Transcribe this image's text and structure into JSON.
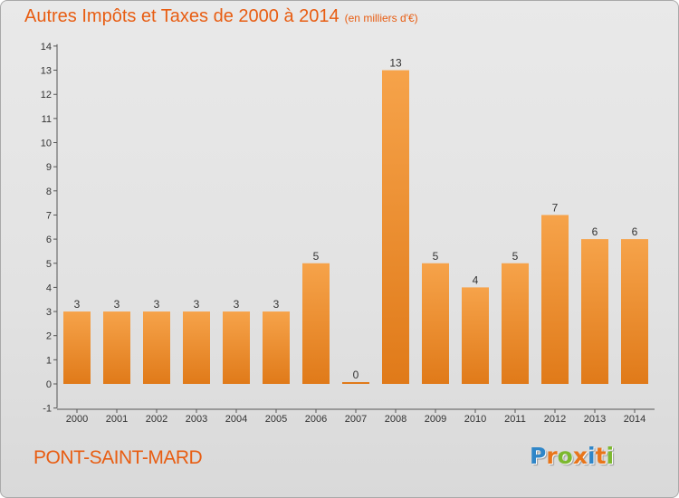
{
  "chart_data": {
    "type": "bar",
    "title": "Autres Impôts et Taxes de 2000 à 2014",
    "unit_note": "(en milliers d'€)",
    "categories": [
      "2000",
      "2001",
      "2002",
      "2003",
      "2004",
      "2005",
      "2006",
      "2007",
      "2008",
      "2009",
      "2010",
      "2011",
      "2012",
      "2013",
      "2014"
    ],
    "values": [
      3,
      3,
      3,
      3,
      3,
      3,
      5,
      0,
      13,
      5,
      4,
      5,
      7,
      6,
      6
    ],
    "data_labels": [
      "3",
      "3",
      "3",
      "3",
      "3",
      "3",
      "5",
      "0",
      "13",
      "5",
      "4",
      "5",
      "7",
      "6",
      "6"
    ],
    "ylim": [
      -1,
      14
    ],
    "yticks": [
      "-1",
      "0",
      "1",
      "2",
      "3",
      "4",
      "5",
      "6",
      "7",
      "8",
      "9",
      "10",
      "11",
      "12",
      "13",
      "14"
    ],
    "grid": false,
    "colors": {
      "bar_light": "#f6a34a",
      "bar_dark": "#e07a19",
      "title": "#e85d12",
      "text": "#333333"
    }
  },
  "footer": {
    "commune": "PONT-SAINT-MARD",
    "logo_letters": [
      {
        "ch": "P",
        "color": "#2f86c8"
      },
      {
        "ch": "r",
        "color": "#e8751a"
      },
      {
        "ch": "o",
        "color": "#7cb82f"
      },
      {
        "ch": "x",
        "color": "#e8751a"
      },
      {
        "ch": "i",
        "color": "#2f86c8"
      },
      {
        "ch": "t",
        "color": "#e8751a"
      },
      {
        "ch": "i",
        "color": "#7cb82f"
      }
    ]
  }
}
